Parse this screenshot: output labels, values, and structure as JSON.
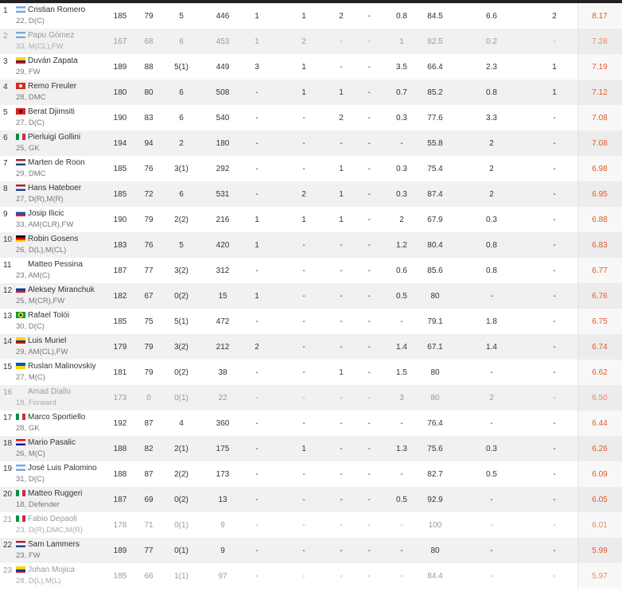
{
  "colors": {
    "rating": "#e2582b",
    "header_bar": "#222222",
    "alt_row": "#f1f1f1"
  },
  "columns": [
    "rank",
    "player",
    "height",
    "weight",
    "apps",
    "mins",
    "goals",
    "assists",
    "yellow",
    "red",
    "shots_pg",
    "pass_pct",
    "aerials_won",
    "motm",
    "rating"
  ],
  "players": [
    {
      "rank": "1",
      "flag": "argentina",
      "name": "Cristian Romero",
      "info": "22, D(C)",
      "height": "185",
      "weight": "79",
      "apps": "5",
      "mins": "446",
      "goals": "1",
      "assists": "1",
      "yellow": "2",
      "red": "-",
      "shots": "0.8",
      "pass": "84.5",
      "aerials": "6.6",
      "motm": "2",
      "rating": "8.17",
      "muted": false
    },
    {
      "rank": "2",
      "flag": "argentina",
      "name": "Papu Gómez",
      "info": "33, M(CL),FW",
      "height": "167",
      "weight": "68",
      "apps": "6",
      "mins": "453",
      "goals": "1",
      "assists": "2",
      "yellow": "-",
      "red": "-",
      "shots": "1",
      "pass": "82.5",
      "aerials": "0.2",
      "motm": "-",
      "rating": "7.28",
      "muted": true
    },
    {
      "rank": "3",
      "flag": "colombia",
      "name": "Duván Zapata",
      "info": "29, FW",
      "height": "189",
      "weight": "88",
      "apps": "5(1)",
      "mins": "449",
      "goals": "3",
      "assists": "1",
      "yellow": "-",
      "red": "-",
      "shots": "3.5",
      "pass": "66.4",
      "aerials": "2.3",
      "motm": "1",
      "rating": "7.19",
      "muted": false
    },
    {
      "rank": "4",
      "flag": "switzerland",
      "name": "Remo Freuler",
      "info": "28, DMC",
      "height": "180",
      "weight": "80",
      "apps": "6",
      "mins": "508",
      "goals": "-",
      "assists": "1",
      "yellow": "1",
      "red": "-",
      "shots": "0.7",
      "pass": "85.2",
      "aerials": "0.8",
      "motm": "1",
      "rating": "7.12",
      "muted": false
    },
    {
      "rank": "5",
      "flag": "albania",
      "name": "Berat Djimsiti",
      "info": "27, D(C)",
      "height": "190",
      "weight": "83",
      "apps": "6",
      "mins": "540",
      "goals": "-",
      "assists": "-",
      "yellow": "2",
      "red": "-",
      "shots": "0.3",
      "pass": "77.6",
      "aerials": "3.3",
      "motm": "-",
      "rating": "7.08",
      "muted": false
    },
    {
      "rank": "6",
      "flag": "italy",
      "name": "Pierluigi Gollini",
      "info": "25, GK",
      "height": "194",
      "weight": "94",
      "apps": "2",
      "mins": "180",
      "goals": "-",
      "assists": "-",
      "yellow": "-",
      "red": "-",
      "shots": "-",
      "pass": "55.8",
      "aerials": "2",
      "motm": "-",
      "rating": "7.08",
      "muted": false
    },
    {
      "rank": "7",
      "flag": "netherlands",
      "name": "Marten de Roon",
      "info": "29, DMC",
      "height": "185",
      "weight": "76",
      "apps": "3(1)",
      "mins": "292",
      "goals": "-",
      "assists": "-",
      "yellow": "1",
      "red": "-",
      "shots": "0.3",
      "pass": "75.4",
      "aerials": "2",
      "motm": "-",
      "rating": "6.98",
      "muted": false
    },
    {
      "rank": "8",
      "flag": "netherlands",
      "name": "Hans Hateboer",
      "info": "27, D(R),M(R)",
      "height": "185",
      "weight": "72",
      "apps": "6",
      "mins": "531",
      "goals": "-",
      "assists": "2",
      "yellow": "1",
      "red": "-",
      "shots": "0.3",
      "pass": "87.4",
      "aerials": "2",
      "motm": "-",
      "rating": "6.95",
      "muted": false
    },
    {
      "rank": "9",
      "flag": "slovenia",
      "name": "Josip Ilicic",
      "info": "33, AM(CLR),FW",
      "height": "190",
      "weight": "79",
      "apps": "2(2)",
      "mins": "216",
      "goals": "1",
      "assists": "1",
      "yellow": "1",
      "red": "-",
      "shots": "2",
      "pass": "67.9",
      "aerials": "0.3",
      "motm": "-",
      "rating": "6.88",
      "muted": false
    },
    {
      "rank": "10",
      "flag": "germany",
      "name": "Robin Gosens",
      "info": "26, D(L),M(CL)",
      "height": "183",
      "weight": "76",
      "apps": "5",
      "mins": "420",
      "goals": "1",
      "assists": "-",
      "yellow": "-",
      "red": "-",
      "shots": "1.2",
      "pass": "80.4",
      "aerials": "0.8",
      "motm": "-",
      "rating": "6.83",
      "muted": false
    },
    {
      "rank": "11",
      "flag": "none",
      "name": "Matteo Pessina",
      "info": "23, AM(C)",
      "height": "187",
      "weight": "77",
      "apps": "3(2)",
      "mins": "312",
      "goals": "-",
      "assists": "-",
      "yellow": "-",
      "red": "-",
      "shots": "0.6",
      "pass": "85.6",
      "aerials": "0.8",
      "motm": "-",
      "rating": "6.77",
      "muted": false
    },
    {
      "rank": "12",
      "flag": "russia",
      "name": "Aleksey Miranchuk",
      "info": "25, M(CR),FW",
      "height": "182",
      "weight": "67",
      "apps": "0(2)",
      "mins": "15",
      "goals": "1",
      "assists": "-",
      "yellow": "-",
      "red": "-",
      "shots": "0.5",
      "pass": "80",
      "aerials": "-",
      "motm": "-",
      "rating": "6.76",
      "muted": false
    },
    {
      "rank": "13",
      "flag": "brazil",
      "name": "Rafael Tolói",
      "info": "30, D(C)",
      "height": "185",
      "weight": "75",
      "apps": "5(1)",
      "mins": "472",
      "goals": "-",
      "assists": "-",
      "yellow": "-",
      "red": "-",
      "shots": "-",
      "pass": "79.1",
      "aerials": "1.8",
      "motm": "-",
      "rating": "6.75",
      "muted": false
    },
    {
      "rank": "14",
      "flag": "colombia",
      "name": "Luis Muriel",
      "info": "29, AM(CL),FW",
      "height": "179",
      "weight": "79",
      "apps": "3(2)",
      "mins": "212",
      "goals": "2",
      "assists": "-",
      "yellow": "-",
      "red": "-",
      "shots": "1.4",
      "pass": "67.1",
      "aerials": "1.4",
      "motm": "-",
      "rating": "6.74",
      "muted": false
    },
    {
      "rank": "15",
      "flag": "ukraine",
      "name": "Ruslan Malinovskiy",
      "info": "27, M(C)",
      "height": "181",
      "weight": "79",
      "apps": "0(2)",
      "mins": "38",
      "goals": "-",
      "assists": "-",
      "yellow": "1",
      "red": "-",
      "shots": "1.5",
      "pass": "80",
      "aerials": "-",
      "motm": "-",
      "rating": "6.62",
      "muted": false
    },
    {
      "rank": "16",
      "flag": "none",
      "name": "Amad Diallo",
      "info": "18, Forward",
      "height": "173",
      "weight": "0",
      "apps": "0(1)",
      "mins": "22",
      "goals": "-",
      "assists": "-",
      "yellow": "-",
      "red": "-",
      "shots": "3",
      "pass": "80",
      "aerials": "2",
      "motm": "-",
      "rating": "6.50",
      "muted": true
    },
    {
      "rank": "17",
      "flag": "italy",
      "name": "Marco Sportiello",
      "info": "28, GK",
      "height": "192",
      "weight": "87",
      "apps": "4",
      "mins": "360",
      "goals": "-",
      "assists": "-",
      "yellow": "-",
      "red": "-",
      "shots": "-",
      "pass": "76.4",
      "aerials": "-",
      "motm": "-",
      "rating": "6.44",
      "muted": false
    },
    {
      "rank": "18",
      "flag": "croatia",
      "name": "Mario Pasalic",
      "info": "26, M(C)",
      "height": "188",
      "weight": "82",
      "apps": "2(1)",
      "mins": "175",
      "goals": "-",
      "assists": "1",
      "yellow": "-",
      "red": "-",
      "shots": "1.3",
      "pass": "75.6",
      "aerials": "0.3",
      "motm": "-",
      "rating": "6.26",
      "muted": false
    },
    {
      "rank": "19",
      "flag": "argentina",
      "name": "José Luis Palomino",
      "info": "31, D(C)",
      "height": "188",
      "weight": "87",
      "apps": "2(2)",
      "mins": "173",
      "goals": "-",
      "assists": "-",
      "yellow": "-",
      "red": "-",
      "shots": "-",
      "pass": "82.7",
      "aerials": "0.5",
      "motm": "-",
      "rating": "6.09",
      "muted": false
    },
    {
      "rank": "20",
      "flag": "italy",
      "name": "Matteo Ruggeri",
      "info": "18, Defender",
      "height": "187",
      "weight": "69",
      "apps": "0(2)",
      "mins": "13",
      "goals": "-",
      "assists": "-",
      "yellow": "-",
      "red": "-",
      "shots": "0.5",
      "pass": "92.9",
      "aerials": "-",
      "motm": "-",
      "rating": "6.05",
      "muted": false
    },
    {
      "rank": "21",
      "flag": "italy",
      "name": "Fabio Depaoli",
      "info": "23, D(R),DMC,M(R)",
      "height": "178",
      "weight": "71",
      "apps": "0(1)",
      "mins": "9",
      "goals": "-",
      "assists": "-",
      "yellow": "-",
      "red": "-",
      "shots": "-",
      "pass": "100",
      "aerials": "-",
      "motm": "-",
      "rating": "6.01",
      "muted": true
    },
    {
      "rank": "22",
      "flag": "netherlands",
      "name": "Sam Lammers",
      "info": "23, FW",
      "height": "189",
      "weight": "77",
      "apps": "0(1)",
      "mins": "9",
      "goals": "-",
      "assists": "-",
      "yellow": "-",
      "red": "-",
      "shots": "-",
      "pass": "80",
      "aerials": "-",
      "motm": "-",
      "rating": "5.99",
      "muted": false
    },
    {
      "rank": "23",
      "flag": "colombia",
      "name": "Johan Mojica",
      "info": "28, D(L),M(L)",
      "height": "185",
      "weight": "66",
      "apps": "1(1)",
      "mins": "97",
      "goals": "-",
      "assists": "-",
      "yellow": "-",
      "red": "-",
      "shots": "-",
      "pass": "84.4",
      "aerials": "-",
      "motm": "-",
      "rating": "5.97",
      "muted": true
    }
  ]
}
